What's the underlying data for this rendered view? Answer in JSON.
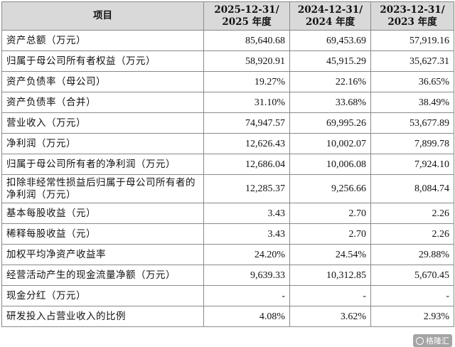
{
  "table": {
    "headers": [
      "项目",
      "2025-12-31/\n2025年度",
      "2024-12-31/\n2024年度",
      "2023-12-31/\n2023年度"
    ],
    "header_item": "项目",
    "col1_line1": "2025-12-31/",
    "col1_line2": "2025 年度",
    "col2_line1": "2024-12-31/",
    "col2_line2": "2024 年度",
    "col3_line1": "2023-12-31/",
    "col3_line2": "2023 年度",
    "rows": [
      {
        "label": "资产总额（万元）",
        "v1": "85,640.68",
        "v2": "69,453.69",
        "v3": "57,919.16"
      },
      {
        "label": "归属于母公司所有者权益（万元）",
        "v1": "58,920.91",
        "v2": "45,915.29",
        "v3": "35,627.31"
      },
      {
        "label": "资产负债率（母公司）",
        "v1": "19.27%",
        "v2": "22.16%",
        "v3": "36.65%"
      },
      {
        "label": "资产负债率（合并）",
        "v1": "31.10%",
        "v2": "33.68%",
        "v3": "38.49%"
      },
      {
        "label": "营业收入（万元）",
        "v1": "74,947.57",
        "v2": "69,995.26",
        "v3": "53,677.89"
      },
      {
        "label": "净利润（万元）",
        "v1": "12,626.43",
        "v2": "10,002.07",
        "v3": "7,899.78"
      },
      {
        "label": "归属于母公司所有者的净利润（万元）",
        "v1": "12,686.04",
        "v2": "10,006.08",
        "v3": "7,924.10"
      },
      {
        "label": "扣除非经常性损益后归属于母公司所有者的净利润（万元）",
        "v1": "12,285.37",
        "v2": "9,256.66",
        "v3": "8,084.74"
      },
      {
        "label": "基本每股收益（元）",
        "v1": "3.43",
        "v2": "2.70",
        "v3": "2.26"
      },
      {
        "label": "稀释每股收益（元）",
        "v1": "3.43",
        "v2": "2.70",
        "v3": "2.26"
      },
      {
        "label": "加权平均净资产收益率",
        "v1": "24.20%",
        "v2": "24.54%",
        "v3": "29.88%"
      },
      {
        "label": "经营活动产生的现金流量净额（万元）",
        "v1": "9,639.33",
        "v2": "10,312.85",
        "v3": "5,670.45"
      },
      {
        "label": "现金分红（万元）",
        "v1": "-",
        "v2": "-",
        "v3": "-"
      },
      {
        "label": "研发投入占营业收入的比例",
        "v1": "4.08%",
        "v2": "3.62%",
        "v3": "2.93%"
      }
    ]
  },
  "watermark": {
    "text": "格隆汇"
  }
}
